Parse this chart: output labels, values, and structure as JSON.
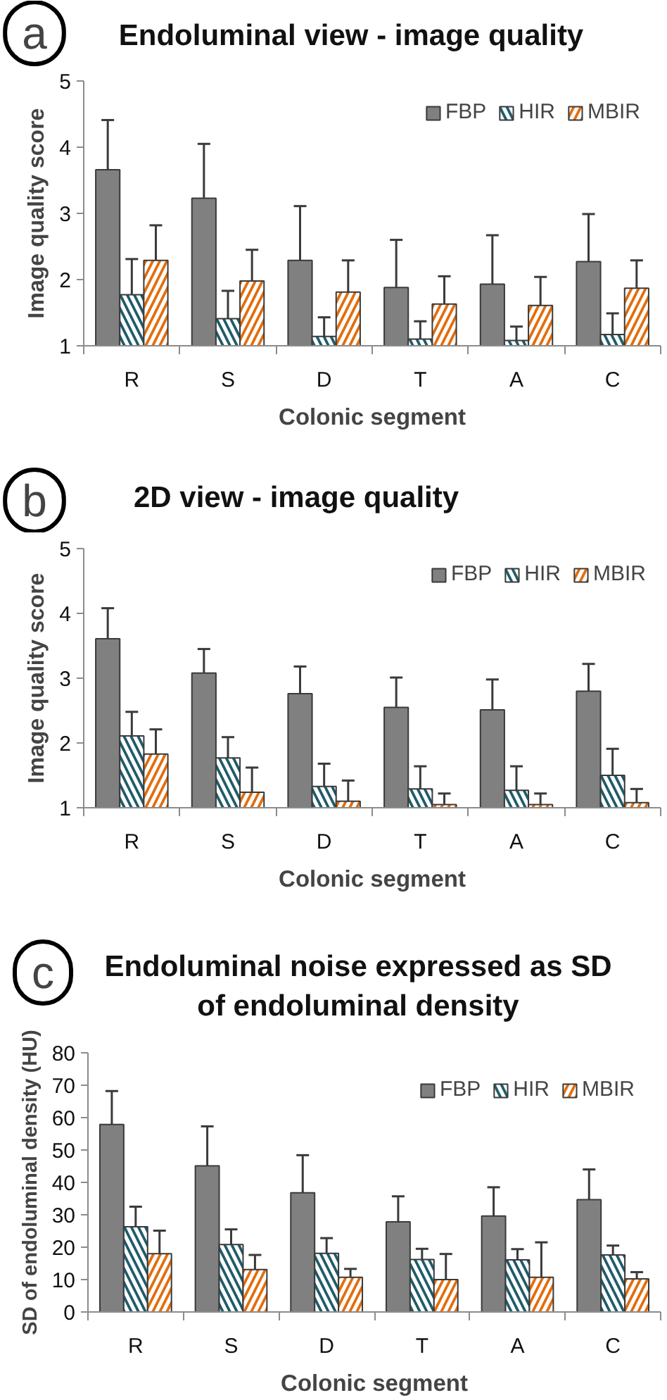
{
  "chart_data": [
    {
      "type": "bar",
      "title": "Endoluminal view - image quality",
      "annotations": [
        "a"
      ],
      "xlabel": "Colonic segment",
      "ylabel": "Image quality score",
      "categories": [
        "R",
        "S",
        "D",
        "T",
        "A",
        "C"
      ],
      "ylim": [
        1,
        5
      ],
      "yticks": [
        1,
        2,
        3,
        4,
        5
      ],
      "legend": "top right",
      "series": [
        {
          "name": "FBP",
          "color": "#808080",
          "values": [
            3.66,
            3.23,
            2.29,
            1.88,
            1.93,
            2.27
          ],
          "errors": [
            [
              3.66,
              4.41
            ],
            [
              3.23,
              4.05
            ],
            [
              2.29,
              3.11
            ],
            [
              1.88,
              2.6
            ],
            [
              1.93,
              2.67
            ],
            [
              2.27,
              2.99
            ]
          ]
        },
        {
          "name": "HIR",
          "color": "#1f5b6a",
          "values": [
            1.77,
            1.41,
            1.14,
            1.1,
            1.08,
            1.17
          ],
          "errors": [
            [
              1.77,
              2.31
            ],
            [
              1.41,
              1.83
            ],
            [
              1.14,
              1.43
            ],
            [
              1.1,
              1.37
            ],
            [
              1.08,
              1.29
            ],
            [
              1.17,
              1.49
            ]
          ]
        },
        {
          "name": "MBIR",
          "color": "#e46c0a",
          "values": [
            2.29,
            1.98,
            1.81,
            1.63,
            1.61,
            1.87
          ],
          "errors": [
            [
              2.29,
              2.82
            ],
            [
              1.98,
              2.45
            ],
            [
              1.81,
              2.29
            ],
            [
              1.63,
              2.05
            ],
            [
              1.61,
              2.04
            ],
            [
              1.87,
              2.29
            ]
          ]
        }
      ]
    },
    {
      "type": "bar",
      "title": "2D view - image quality",
      "annotations": [
        "b"
      ],
      "xlabel": "Colonic segment",
      "ylabel": "Image quality score",
      "categories": [
        "R",
        "S",
        "D",
        "T",
        "A",
        "C"
      ],
      "ylim": [
        1,
        5
      ],
      "yticks": [
        1,
        2,
        3,
        4,
        5
      ],
      "legend": "top right",
      "series": [
        {
          "name": "FBP",
          "color": "#808080",
          "values": [
            3.61,
            3.08,
            2.76,
            2.55,
            2.51,
            2.8
          ],
          "errors": [
            [
              3.61,
              4.08
            ],
            [
              3.08,
              3.45
            ],
            [
              2.76,
              3.18
            ],
            [
              2.55,
              3.01
            ],
            [
              2.51,
              2.98
            ],
            [
              2.8,
              3.22
            ]
          ]
        },
        {
          "name": "HIR",
          "color": "#1f5b6a",
          "values": [
            2.11,
            1.77,
            1.33,
            1.29,
            1.27,
            1.5
          ],
          "errors": [
            [
              2.11,
              2.48
            ],
            [
              1.77,
              2.09
            ],
            [
              1.33,
              1.68
            ],
            [
              1.29,
              1.64
            ],
            [
              1.27,
              1.64
            ],
            [
              1.5,
              1.91
            ]
          ]
        },
        {
          "name": "MBIR",
          "color": "#e46c0a",
          "values": [
            1.83,
            1.24,
            1.1,
            1.05,
            1.05,
            1.08
          ],
          "errors": [
            [
              1.83,
              2.21
            ],
            [
              1.24,
              1.62
            ],
            [
              1.1,
              1.42
            ],
            [
              1.05,
              1.22
            ],
            [
              1.05,
              1.22
            ],
            [
              1.08,
              1.29
            ]
          ]
        }
      ]
    },
    {
      "type": "bar",
      "title": "Endoluminal noise expressed as SD of endoluminal density",
      "annotations": [
        "c"
      ],
      "xlabel": "Colonic segment",
      "ylabel": "SD of endoluminal density (HU)",
      "categories": [
        "R",
        "S",
        "D",
        "T",
        "A",
        "C"
      ],
      "ylim": [
        0,
        80
      ],
      "yticks": [
        0,
        10,
        20,
        30,
        40,
        50,
        60,
        70,
        80
      ],
      "legend": "top right",
      "series": [
        {
          "name": "FBP",
          "color": "#808080",
          "values": [
            57.9,
            45.1,
            36.8,
            27.8,
            29.6,
            34.7
          ],
          "errors": [
            [
              57.9,
              68.2
            ],
            [
              45.1,
              57.3
            ],
            [
              36.8,
              48.4
            ],
            [
              27.8,
              35.7
            ],
            [
              29.6,
              38.5
            ],
            [
              34.7,
              44.0
            ]
          ]
        },
        {
          "name": "HIR",
          "color": "#1f5b6a",
          "values": [
            26.3,
            20.8,
            18.1,
            16.2,
            16.1,
            17.6
          ],
          "errors": [
            [
              26.3,
              32.5
            ],
            [
              20.8,
              25.5
            ],
            [
              18.1,
              22.8
            ],
            [
              16.2,
              19.5
            ],
            [
              16.1,
              19.4
            ],
            [
              17.6,
              20.5
            ]
          ]
        },
        {
          "name": "MBIR",
          "color": "#e46c0a",
          "values": [
            18.0,
            13.1,
            10.7,
            10.0,
            10.7,
            10.2
          ],
          "errors": [
            [
              18.0,
              25.1
            ],
            [
              13.1,
              17.6
            ],
            [
              10.7,
              13.3
            ],
            [
              10.0,
              17.9
            ],
            [
              10.7,
              21.5
            ],
            [
              10.2,
              12.3
            ]
          ]
        }
      ]
    }
  ]
}
